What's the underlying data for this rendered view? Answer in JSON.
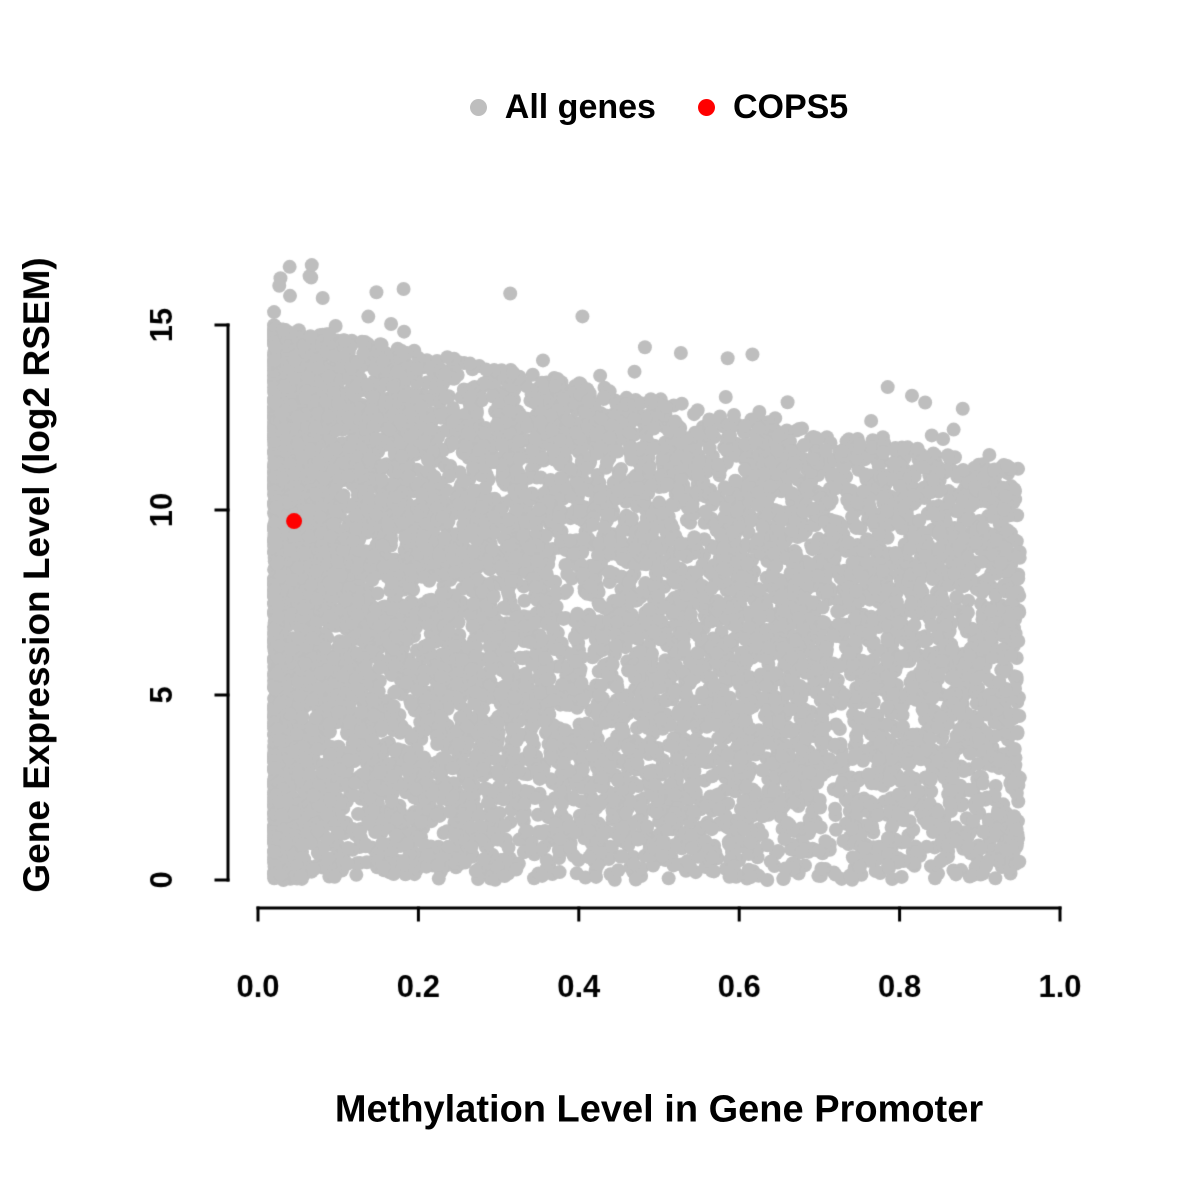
{
  "page": {
    "background_color": "#ffffff",
    "text_color": "#000000"
  },
  "legend": {
    "position": "top-center",
    "items": [
      {
        "label": "All genes",
        "color": "#bebebe"
      },
      {
        "label": "COPS5",
        "color": "#ff0000"
      }
    ]
  },
  "chart_data": {
    "type": "scatter",
    "title": "",
    "xlabel": "Methylation Level in Gene Promoter",
    "ylabel": "Gene Expression Level (log2 RSEM)",
    "xlim": [
      0,
      1
    ],
    "ylim": [
      0,
      17.5
    ],
    "x_ticks": [
      0.0,
      0.2,
      0.4,
      0.6,
      0.8,
      1.0
    ],
    "x_tick_labels": [
      "0.0",
      "0.2",
      "0.4",
      "0.6",
      "0.8",
      "1.0"
    ],
    "y_ticks": [
      0,
      5,
      10,
      15
    ],
    "y_tick_labels": [
      "0",
      "5",
      "10",
      "15"
    ],
    "grid": false,
    "legend_position": "top-center",
    "point_radius_px": 7,
    "series": [
      {
        "name": "All genes",
        "color": "#bebebe",
        "representation": "dense-cloud",
        "n_points": 9000,
        "seed": 42,
        "x_range": [
          0.02,
          0.95
        ],
        "y_range": [
          0,
          17.2
        ],
        "envelope_intercept": 15.0,
        "envelope_slope": -4.2,
        "low_x_bias_fraction": 0.5,
        "low_x_power": 2.4,
        "above_envelope_fraction": 0.006,
        "description": "Dense gray cloud filling y from 0 up to an upper envelope that declines from ~15 at x=0 to ~11 at x=0.95; densest at low methylation (x < 0.1) with a few outliers reaching y ~17."
      },
      {
        "name": "COPS5",
        "color": "#ff0000",
        "representation": "points",
        "points": [
          [
            0.045,
            9.7
          ]
        ]
      }
    ]
  }
}
